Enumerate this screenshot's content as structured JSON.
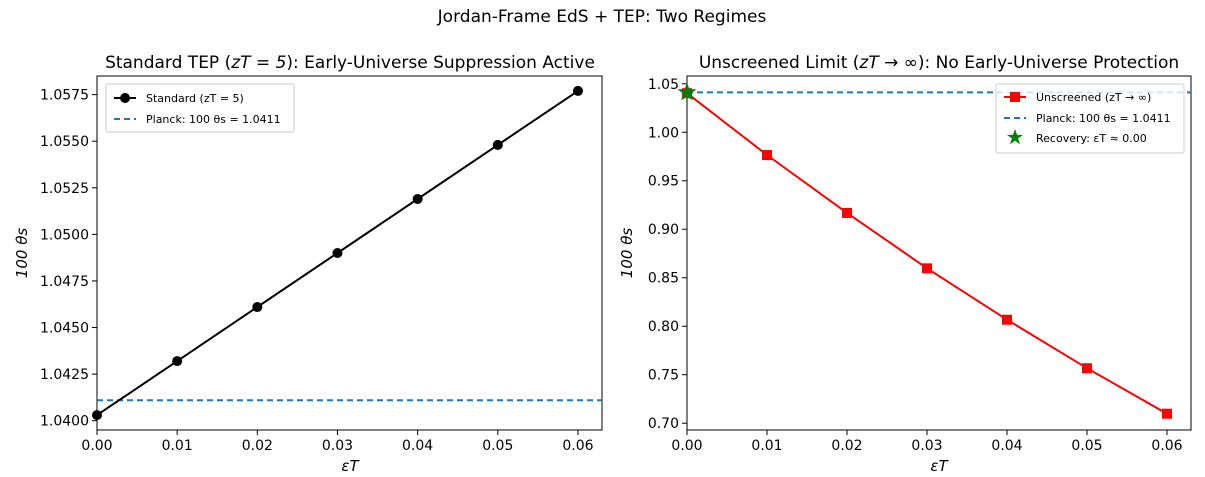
{
  "suptitle": "Jordan-Frame EdS + TEP: Two Regimes",
  "chart_data": [
    {
      "type": "line",
      "title_prefix": "Standard TEP (",
      "title_math": "zT = 5",
      "title_suffix": "): Early-Universe Suppression Active",
      "xlabel": "εT",
      "ylabel": "100 θs",
      "xlim": [
        0.0,
        0.063
      ],
      "ylim": [
        1.0395,
        1.0585
      ],
      "xticks": [
        "0.00",
        "0.01",
        "0.02",
        "0.03",
        "0.04",
        "0.05",
        "0.06"
      ],
      "yticks": [
        "1.0400",
        "1.0425",
        "1.0450",
        "1.0475",
        "1.0500",
        "1.0525",
        "1.0550",
        "1.0575"
      ],
      "grid": false,
      "legend_position": "upper-left",
      "series": [
        {
          "name": "Standard (zT = 5)",
          "color": "#000000",
          "marker": "circle",
          "x": [
            0.0,
            0.01,
            0.02,
            0.03,
            0.04,
            0.05,
            0.06
          ],
          "y": [
            1.0403,
            1.0432,
            1.0461,
            1.049,
            1.0519,
            1.0548,
            1.0577
          ]
        }
      ],
      "reference_line": {
        "name": "Planck: 100 θs = 1.0411",
        "y": 1.0411,
        "color": "#1f77b4",
        "style": "dashed"
      }
    },
    {
      "type": "line",
      "title_prefix": "Unscreened Limit (",
      "title_math": "zT → ∞",
      "title_suffix": "): No Early-Universe Protection",
      "xlabel": "εT",
      "ylabel": "100 θs",
      "xlim": [
        0.0,
        0.063
      ],
      "ylim": [
        0.693,
        1.058
      ],
      "xticks": [
        "0.00",
        "0.01",
        "0.02",
        "0.03",
        "0.04",
        "0.05",
        "0.06"
      ],
      "yticks": [
        "0.70",
        "0.75",
        "0.80",
        "0.85",
        "0.90",
        "0.95",
        "1.00",
        "1.05"
      ],
      "grid": false,
      "legend_position": "upper-right",
      "series": [
        {
          "name": "Unscreened (zT → ∞)",
          "color": "#ff0000",
          "marker": "square",
          "x": [
            0.0,
            0.01,
            0.02,
            0.03,
            0.04,
            0.05,
            0.06
          ],
          "y": [
            1.0403,
            0.9765,
            0.9168,
            0.8597,
            0.8067,
            0.7567,
            0.7098
          ]
        }
      ],
      "reference_line": {
        "name": "Planck: 100 θs = 1.0411",
        "y": 1.0411,
        "color": "#1f77b4",
        "style": "dashed"
      },
      "highlight": {
        "name": "Recovery: εT ≈ 0.00",
        "x": 0.0,
        "y": 1.0411,
        "color": "#008000",
        "marker": "star"
      }
    }
  ]
}
